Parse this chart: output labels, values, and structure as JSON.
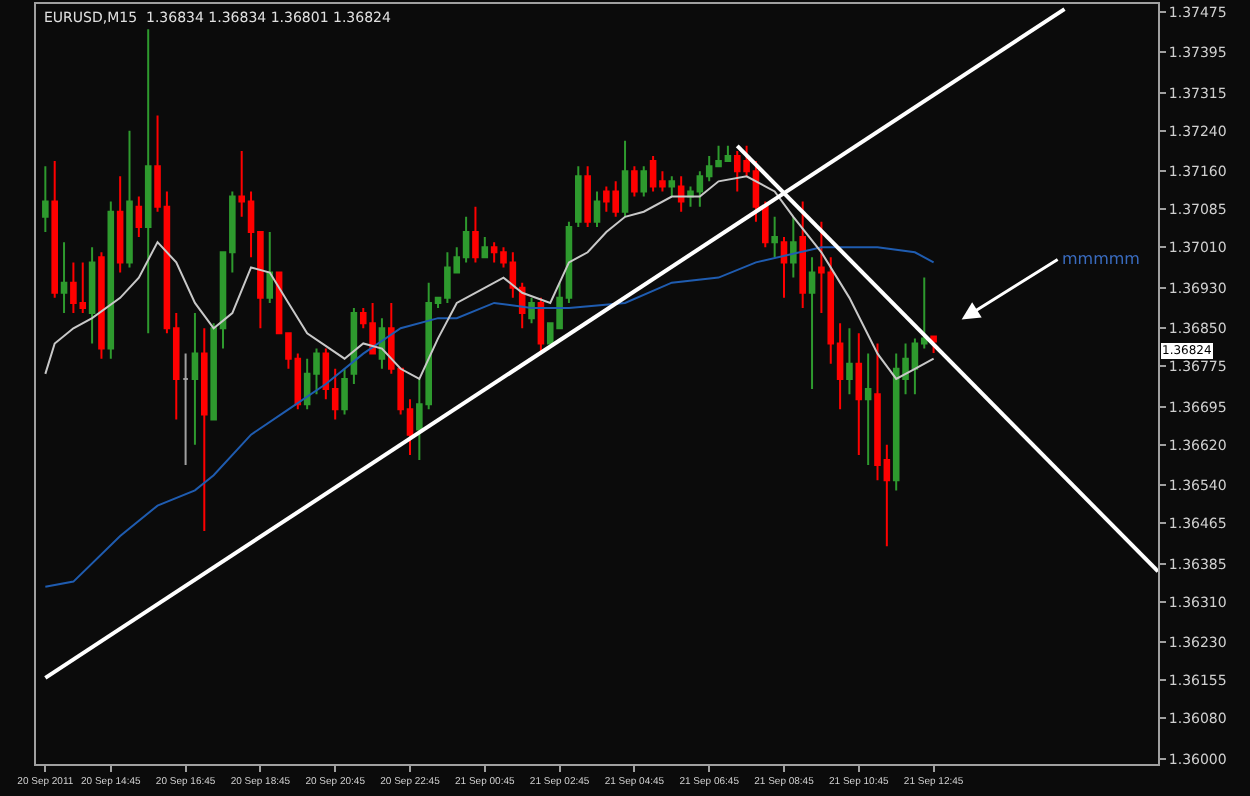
{
  "chart_data": {
    "type": "candlestick",
    "title": "EURUSD,M15  1.36834 1.36834 1.36801 1.36824",
    "x": [
      "2011-09-20T13:00",
      "2011-09-20T13:15",
      "2011-09-20T13:30",
      "2011-09-20T13:45",
      "2011-09-20T14:00",
      "2011-09-20T14:15",
      "2011-09-20T14:30",
      "2011-09-20T14:45",
      "2011-09-20T15:00",
      "2011-09-20T15:15",
      "2011-09-20T15:30",
      "2011-09-20T15:45",
      "2011-09-20T16:00",
      "2011-09-20T16:15",
      "2011-09-20T16:30",
      "2011-09-20T16:45",
      "2011-09-20T17:00",
      "2011-09-20T17:15",
      "2011-09-20T17:30",
      "2011-09-20T17:45",
      "2011-09-20T18:00",
      "2011-09-20T18:15",
      "2011-09-20T18:30",
      "2011-09-20T18:45",
      "2011-09-20T19:00",
      "2011-09-20T19:15",
      "2011-09-20T19:30",
      "2011-09-20T19:45",
      "2011-09-20T20:00",
      "2011-09-20T20:15",
      "2011-09-20T20:30",
      "2011-09-20T20:45",
      "2011-09-20T21:00",
      "2011-09-20T21:15",
      "2011-09-20T21:30",
      "2011-09-20T21:45",
      "2011-09-20T22:00",
      "2011-09-20T22:15",
      "2011-09-20T22:30",
      "2011-09-20T22:45",
      "2011-09-20T23:00",
      "2011-09-20T23:15",
      "2011-09-20T23:30",
      "2011-09-20T23:45",
      "2011-09-21T00:00",
      "2011-09-21T00:15",
      "2011-09-21T00:30",
      "2011-09-21T00:45",
      "2011-09-21T01:00",
      "2011-09-21T01:15",
      "2011-09-21T01:30",
      "2011-09-21T01:45",
      "2011-09-21T02:00",
      "2011-09-21T02:15",
      "2011-09-21T02:30",
      "2011-09-21T02:45",
      "2011-09-21T03:00",
      "2011-09-21T03:15",
      "2011-09-21T03:30",
      "2011-09-21T03:45",
      "2011-09-21T04:00",
      "2011-09-21T04:15",
      "2011-09-21T04:30",
      "2011-09-21T04:45",
      "2011-09-21T05:00",
      "2011-09-21T05:15",
      "2011-09-21T05:30",
      "2011-09-21T05:45",
      "2011-09-21T06:00",
      "2011-09-21T06:15",
      "2011-09-21T06:30",
      "2011-09-21T06:45",
      "2011-09-21T07:00",
      "2011-09-21T07:15",
      "2011-09-21T07:30",
      "2011-09-21T07:45",
      "2011-09-21T08:00",
      "2011-09-21T08:15",
      "2011-09-21T08:30",
      "2011-09-21T08:45",
      "2011-09-21T09:00",
      "2011-09-21T09:15",
      "2011-09-21T09:30",
      "2011-09-21T09:45",
      "2011-09-21T10:00",
      "2011-09-21T10:15",
      "2011-09-21T10:30",
      "2011-09-21T10:45",
      "2011-09-21T11:00",
      "2011-09-21T11:15",
      "2011-09-21T11:30",
      "2011-09-21T11:45",
      "2011-09-21T12:00",
      "2011-09-21T12:15",
      "2011-09-21T12:30",
      "2011-09-21T12:45"
    ],
    "ohlc": [
      [
        1.3707,
        1.3717,
        1.3704,
        1.371
      ],
      [
        1.371,
        1.3718,
        1.3691,
        1.3692
      ],
      [
        1.3692,
        1.3702,
        1.3688,
        1.3694
      ],
      [
        1.3694,
        1.3698,
        1.3688,
        1.369
      ],
      [
        1.369,
        1.3698,
        1.3688,
        1.3689
      ],
      [
        1.3688,
        1.3701,
        1.3682,
        1.3698
      ],
      [
        1.3699,
        1.37,
        1.3679,
        1.3681
      ],
      [
        1.3681,
        1.371,
        1.3679,
        1.3708
      ],
      [
        1.3708,
        1.3715,
        1.3696,
        1.3698
      ],
      [
        1.3698,
        1.3724,
        1.3697,
        1.371
      ],
      [
        1.3709,
        1.3711,
        1.3703,
        1.3705
      ],
      [
        1.3705,
        1.3744,
        1.3684,
        1.3717
      ],
      [
        1.3717,
        1.3727,
        1.3708,
        1.3709
      ],
      [
        1.3709,
        1.3712,
        1.3684,
        1.3685
      ],
      [
        1.3685,
        1.3688,
        1.3667,
        1.3675
      ],
      [
        1.3675,
        1.368,
        1.3658,
        1.3675
      ],
      [
        1.3675,
        1.3688,
        1.3662,
        1.368
      ],
      [
        1.368,
        1.3685,
        1.3645,
        1.3668
      ],
      [
        1.3667,
        1.3686,
        1.3667,
        1.3685
      ],
      [
        1.3685,
        1.37,
        1.3681,
        1.37
      ],
      [
        1.37,
        1.3712,
        1.3696,
        1.3711
      ],
      [
        1.3711,
        1.372,
        1.3707,
        1.371
      ],
      [
        1.371,
        1.3712,
        1.3699,
        1.3704
      ],
      [
        1.3704,
        1.3704,
        1.3685,
        1.3691
      ],
      [
        1.3691,
        1.3704,
        1.369,
        1.3696
      ],
      [
        1.3696,
        1.3696,
        1.3684,
        1.3684
      ],
      [
        1.3684,
        1.3684,
        1.3677,
        1.3679
      ],
      [
        1.3679,
        1.368,
        1.3669,
        1.367
      ],
      [
        1.367,
        1.3679,
        1.3669,
        1.3676
      ],
      [
        1.3676,
        1.3681,
        1.3672,
        1.368
      ],
      [
        1.368,
        1.3681,
        1.3671,
        1.3673
      ],
      [
        1.3673,
        1.3677,
        1.3667,
        1.3669
      ],
      [
        1.3669,
        1.3677,
        1.3668,
        1.3675
      ],
      [
        1.3676,
        1.3689,
        1.3674,
        1.3688
      ],
      [
        1.3688,
        1.3689,
        1.3685,
        1.3686
      ],
      [
        1.3686,
        1.369,
        1.368,
        1.368
      ],
      [
        1.3679,
        1.3687,
        1.3677,
        1.3685
      ],
      [
        1.3685,
        1.369,
        1.3676,
        1.3677
      ],
      [
        1.3677,
        1.3677,
        1.3668,
        1.3669
      ],
      [
        1.3669,
        1.3671,
        1.366,
        1.3664
      ],
      [
        1.3665,
        1.3675,
        1.3659,
        1.367
      ],
      [
        1.367,
        1.3694,
        1.3669,
        1.369
      ],
      [
        1.369,
        1.3691,
        1.3689,
        1.3691
      ],
      [
        1.3691,
        1.37,
        1.369,
        1.3697
      ],
      [
        1.3696,
        1.3701,
        1.3696,
        1.3699
      ],
      [
        1.3699,
        1.3707,
        1.3698,
        1.3704
      ],
      [
        1.3704,
        1.3709,
        1.3698,
        1.3699
      ],
      [
        1.3699,
        1.3703,
        1.3699,
        1.3701
      ],
      [
        1.3701,
        1.3702,
        1.3698,
        1.37
      ],
      [
        1.37,
        1.3701,
        1.3697,
        1.3698
      ],
      [
        1.3698,
        1.37,
        1.3691,
        1.3693
      ],
      [
        1.3693,
        1.3694,
        1.3685,
        1.3688
      ],
      [
        1.3687,
        1.3691,
        1.3686,
        1.369
      ],
      [
        1.369,
        1.3691,
        1.368,
        1.3682
      ],
      [
        1.3682,
        1.3686,
        1.3682,
        1.3686
      ],
      [
        1.3685,
        1.3694,
        1.3685,
        1.3691
      ],
      [
        1.3691,
        1.3706,
        1.369,
        1.3705
      ],
      [
        1.3706,
        1.3717,
        1.3705,
        1.3715
      ],
      [
        1.3715,
        1.3717,
        1.3705,
        1.3706
      ],
      [
        1.3706,
        1.3712,
        1.3705,
        1.371
      ],
      [
        1.3712,
        1.3713,
        1.3708,
        1.371
      ],
      [
        1.3712,
        1.3714,
        1.3707,
        1.3708
      ],
      [
        1.3708,
        1.3722,
        1.3707,
        1.3716
      ],
      [
        1.3716,
        1.3717,
        1.3711,
        1.3712
      ],
      [
        1.3712,
        1.3717,
        1.3711,
        1.3716
      ],
      [
        1.3718,
        1.3719,
        1.3712,
        1.3713
      ],
      [
        1.3714,
        1.3716,
        1.3712,
        1.3713
      ],
      [
        1.3713,
        1.3715,
        1.3711,
        1.3714
      ],
      [
        1.3713,
        1.3715,
        1.3708,
        1.371
      ],
      [
        1.3711,
        1.3713,
        1.3709,
        1.3712
      ],
      [
        1.3712,
        1.3716,
        1.3709,
        1.3715
      ],
      [
        1.3715,
        1.3719,
        1.3714,
        1.3717
      ],
      [
        1.3717,
        1.3721,
        1.3717,
        1.3718
      ],
      [
        1.3718,
        1.3721,
        1.3718,
        1.3719
      ],
      [
        1.3719,
        1.372,
        1.3712,
        1.3716
      ],
      [
        1.3718,
        1.3721,
        1.3715,
        1.3716
      ],
      [
        1.3716,
        1.3718,
        1.3706,
        1.3709
      ],
      [
        1.3709,
        1.371,
        1.3701,
        1.3702
      ],
      [
        1.3702,
        1.3707,
        1.3699,
        1.3703
      ],
      [
        1.3702,
        1.3703,
        1.3691,
        1.3698
      ],
      [
        1.3698,
        1.3707,
        1.3695,
        1.3702
      ],
      [
        1.3703,
        1.371,
        1.3689,
        1.3692
      ],
      [
        1.3692,
        1.3699,
        1.3673,
        1.3696
      ],
      [
        1.3697,
        1.3706,
        1.3688,
        1.3696
      ],
      [
        1.3696,
        1.3699,
        1.3678,
        1.3682
      ],
      [
        1.3682,
        1.3686,
        1.3669,
        1.3675
      ],
      [
        1.3675,
        1.3685,
        1.3672,
        1.3678
      ],
      [
        1.3678,
        1.3684,
        1.366,
        1.3671
      ],
      [
        1.3671,
        1.368,
        1.3658,
        1.3673
      ],
      [
        1.3672,
        1.3682,
        1.3655,
        1.3658
      ],
      [
        1.3659,
        1.3662,
        1.3642,
        1.3655
      ],
      [
        1.3655,
        1.368,
        1.3653,
        1.3677
      ],
      [
        1.3675,
        1.3682,
        1.3672,
        1.3679
      ],
      [
        1.3677,
        1.3683,
        1.3672,
        1.3682
      ],
      [
        1.3682,
        1.3695,
        1.3681,
        1.3683
      ],
      [
        1.36834,
        1.36834,
        1.36801,
        1.36824
      ]
    ],
    "colors": [
      "#2e9a2e",
      "#ff0000",
      "#2e9a2e",
      "#ff0000",
      "#ff0000",
      "#2e9a2e",
      "#ff0000",
      "#2e9a2e",
      "#ff0000",
      "#2e9a2e",
      "#ff0000",
      "#2e9a2e",
      "#ff0000",
      "#ff0000",
      "#ff0000",
      "#a0a0a0",
      "#2e9a2e",
      "#ff0000",
      "#2e9a2e",
      "#2e9a2e",
      "#2e9a2e",
      "#ff0000",
      "#ff0000",
      "#ff0000",
      "#2e9a2e",
      "#ff0000",
      "#ff0000",
      "#ff0000",
      "#2e9a2e",
      "#2e9a2e",
      "#ff0000",
      "#ff0000",
      "#2e9a2e",
      "#2e9a2e",
      "#ff0000",
      "#ff0000",
      "#2e9a2e",
      "#ff0000",
      "#ff0000",
      "#ff0000",
      "#2e9a2e",
      "#2e9a2e",
      "#2e9a2e",
      "#2e9a2e",
      "#2e9a2e",
      "#2e9a2e",
      "#ff0000",
      "#2e9a2e",
      "#ff0000",
      "#ff0000",
      "#ff0000",
      "#ff0000",
      "#2e9a2e",
      "#ff0000",
      "#2e9a2e",
      "#2e9a2e",
      "#2e9a2e",
      "#2e9a2e",
      "#ff0000",
      "#2e9a2e",
      "#ff0000",
      "#ff0000",
      "#2e9a2e",
      "#ff0000",
      "#2e9a2e",
      "#ff0000",
      "#ff0000",
      "#2e9a2e",
      "#ff0000",
      "#2e9a2e",
      "#2e9a2e",
      "#2e9a2e",
      "#2e9a2e",
      "#2e9a2e",
      "#ff0000",
      "#ff0000",
      "#ff0000",
      "#ff0000",
      "#2e9a2e",
      "#ff0000",
      "#2e9a2e",
      "#ff0000",
      "#2e9a2e",
      "#ff0000",
      "#ff0000",
      "#ff0000",
      "#2e9a2e",
      "#ff0000",
      "#2e9a2e",
      "#ff0000",
      "#ff0000",
      "#2e9a2e",
      "#2e9a2e",
      "#2e9a2e",
      "#2e9a2e",
      "#ff0000"
    ],
    "series": [
      {
        "type": "line",
        "color": "#1f5cb0",
        "x": [
          "2011-09-20T13:00",
          "2011-09-20T13:45",
          "2011-09-20T15:00",
          "2011-09-20T16:00",
          "2011-09-20T17:00",
          "2011-09-20T17:30",
          "2011-09-20T18:30",
          "2011-09-20T19:30",
          "2011-09-20T20:30",
          "2011-09-20T21:30",
          "2011-09-20T22:30",
          "2011-09-20T23:30",
          "2011-09-21T00:00",
          "2011-09-21T01:00",
          "2011-09-21T02:00",
          "2011-09-21T03:00",
          "2011-09-21T04:30",
          "2011-09-21T05:45",
          "2011-09-21T07:00",
          "2011-09-21T08:00",
          "2011-09-21T09:45",
          "2011-09-21T11:15",
          "2011-09-21T12:15",
          "2011-09-21T12:45"
        ],
        "values": [
          1.3634,
          1.3635,
          1.3644,
          1.365,
          1.3653,
          1.3656,
          1.3664,
          1.3669,
          1.3674,
          1.368,
          1.3685,
          1.3687,
          1.3687,
          1.369,
          1.3689,
          1.3689,
          1.369,
          1.3694,
          1.3695,
          1.3698,
          1.3701,
          1.3701,
          1.37,
          1.3698
        ]
      },
      {
        "type": "line",
        "color": "#c8c8c8",
        "x": [
          "2011-09-20T13:00",
          "2011-09-20T13:15",
          "2011-09-20T13:45",
          "2011-09-20T14:15",
          "2011-09-20T15:00",
          "2011-09-20T15:30",
          "2011-09-20T16:00",
          "2011-09-20T16:30",
          "2011-09-20T17:00",
          "2011-09-20T17:30",
          "2011-09-20T18:00",
          "2011-09-20T18:30",
          "2011-09-20T19:00",
          "2011-09-20T19:30",
          "2011-09-20T20:00",
          "2011-09-20T21:00",
          "2011-09-20T21:30",
          "2011-09-20T22:00",
          "2011-09-20T22:30",
          "2011-09-20T23:00",
          "2011-09-20T23:30",
          "2011-09-21T00:00",
          "2011-09-21T00:30",
          "2011-09-21T01:15",
          "2011-09-21T01:45",
          "2011-09-21T02:30",
          "2011-09-21T03:00",
          "2011-09-21T03:30",
          "2011-09-21T04:00",
          "2011-09-21T04:30",
          "2011-09-21T05:00",
          "2011-09-21T05:45",
          "2011-09-21T06:30",
          "2011-09-21T07:00",
          "2011-09-21T07:45",
          "2011-09-21T08:30",
          "2011-09-21T09:00",
          "2011-09-21T09:45",
          "2011-09-21T10:30",
          "2011-09-21T11:15",
          "2011-09-21T11:45",
          "2011-09-21T12:15",
          "2011-09-21T12:45"
        ],
        "values": [
          1.3676,
          1.3682,
          1.3685,
          1.3687,
          1.3691,
          1.3695,
          1.3702,
          1.3698,
          1.369,
          1.3685,
          1.3688,
          1.3697,
          1.3696,
          1.369,
          1.3684,
          1.3679,
          1.3682,
          1.3681,
          1.3677,
          1.3675,
          1.3683,
          1.369,
          1.3692,
          1.3695,
          1.3692,
          1.369,
          1.3698,
          1.37,
          1.3704,
          1.3707,
          1.3708,
          1.3711,
          1.3711,
          1.3714,
          1.3715,
          1.3712,
          1.3707,
          1.37,
          1.3691,
          1.368,
          1.3675,
          1.3677,
          1.3679
        ]
      },
      {
        "type": "line",
        "color": "#ffffff",
        "x": [
          "2011-09-20T13:00",
          "2011-09-21T16:15"
        ],
        "values": [
          1.3616,
          1.3748
        ]
      },
      {
        "type": "line",
        "color": "#ffffff",
        "x": [
          "2011-09-21T07:30",
          "2011-09-21T18:45"
        ],
        "values": [
          1.3721,
          1.3637
        ]
      }
    ],
    "annotations": [
      "mmmmm",
      "1.36824"
    ],
    "xlim": [
      "2011-09-20T12:45",
      "2011-09-21T18:45"
    ],
    "xticks": [
      {
        "value": "2011-09-20T13:00",
        "label": "20 Sep 2011"
      },
      {
        "value": "2011-09-20T14:45",
        "label": "20 Sep 14:45"
      },
      {
        "value": "2011-09-20T16:45",
        "label": "20 Sep 16:45"
      },
      {
        "value": "2011-09-20T18:45",
        "label": "20 Sep 18:45"
      },
      {
        "value": "2011-09-20T20:45",
        "label": "20 Sep 20:45"
      },
      {
        "value": "2011-09-20T22:45",
        "label": "20 Sep 22:45"
      },
      {
        "value": "2011-09-21T00:45",
        "label": "21 Sep 00:45"
      },
      {
        "value": "2011-09-21T02:45",
        "label": "21 Sep 02:45"
      },
      {
        "value": "2011-09-21T04:45",
        "label": "21 Sep 04:45"
      },
      {
        "value": "2011-09-21T06:45",
        "label": "21 Sep 06:45"
      },
      {
        "value": "2011-09-21T08:45",
        "label": "21 Sep 08:45"
      },
      {
        "value": "2011-09-21T10:45",
        "label": "21 Sep 10:45"
      },
      {
        "value": "2011-09-21T12:45",
        "label": "21 Sep 12:45"
      }
    ],
    "ylim": [
      1.3599,
      1.3749
    ],
    "yticks": [
      1.37475,
      1.37395,
      1.37315,
      {
        "value": 1.3724,
        "label": "1.37240"
      },
      {
        "value": 1.3716,
        "label": "1.37160"
      },
      1.37085,
      {
        "value": 1.3701,
        "label": "1.37010"
      },
      {
        "value": 1.3693,
        "label": "1.36930"
      },
      {
        "value": 1.3685,
        "label": "1.36850"
      },
      1.36775,
      1.36695,
      {
        "value": 1.3662,
        "label": "1.36620"
      },
      {
        "value": 1.3654,
        "label": "1.36540"
      },
      1.36465,
      1.36385,
      {
        "value": 1.3631,
        "label": "1.36310"
      },
      {
        "value": 1.3623,
        "label": "1.36230"
      },
      1.36155,
      {
        "value": 1.3608,
        "label": "1.36080"
      },
      {
        "value": 1.36,
        "label": "1.36000"
      }
    ],
    "grid": false
  }
}
